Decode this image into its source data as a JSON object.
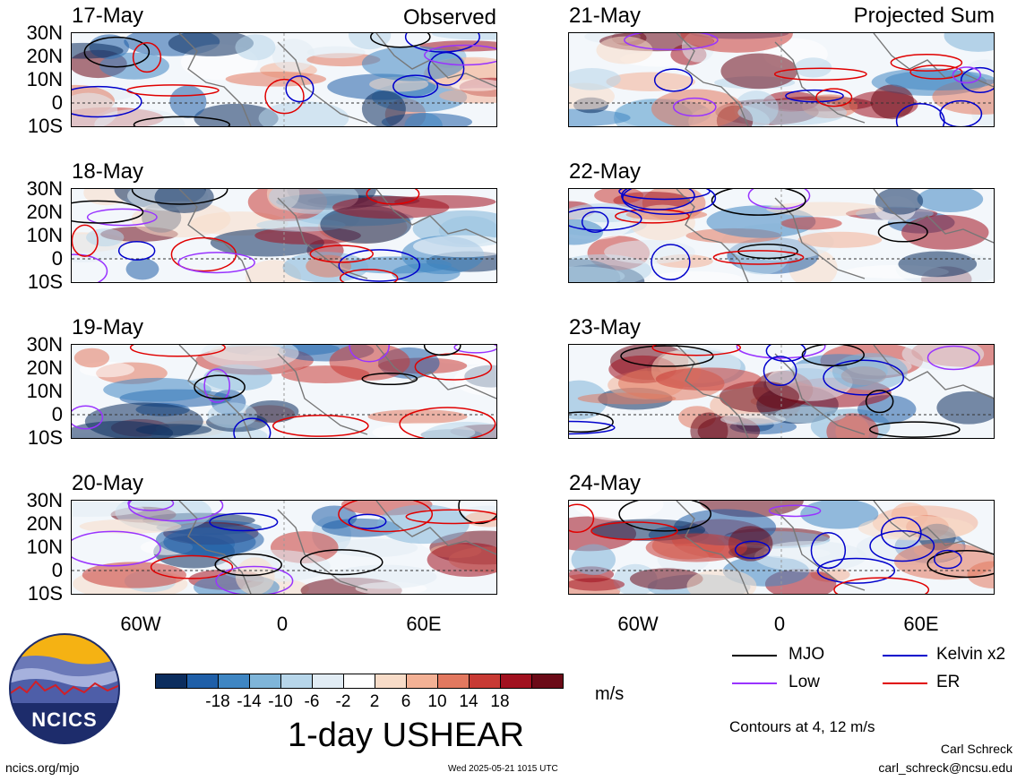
{
  "panels_left": [
    {
      "date": "17-May",
      "tag": "Observed"
    },
    {
      "date": "18-May",
      "tag": ""
    },
    {
      "date": "19-May",
      "tag": ""
    },
    {
      "date": "20-May",
      "tag": ""
    }
  ],
  "panels_right": [
    {
      "date": "21-May",
      "tag": "Projected Sum"
    },
    {
      "date": "22-May",
      "tag": ""
    },
    {
      "date": "23-May",
      "tag": ""
    },
    {
      "date": "24-May",
      "tag": ""
    }
  ],
  "lat_labels": [
    "30N",
    "20N",
    "10N",
    "0",
    "10S"
  ],
  "lon_labels": [
    "60W",
    "0",
    "60E"
  ],
  "legend": {
    "items": [
      {
        "label": "MJO",
        "color": "#000000"
      },
      {
        "label": "Kelvin x2",
        "color": "#0000cc"
      },
      {
        "label": "Low",
        "color": "#9933ff"
      },
      {
        "label": "ER",
        "color": "#e00000"
      }
    ],
    "contours_note": "Contours at 4, 12 m/s"
  },
  "colorbar": {
    "colors": [
      "#0b2d5e",
      "#1f5fa8",
      "#3f86c3",
      "#7fb5d9",
      "#b7d6ea",
      "#e1ecf4",
      "#ffffff",
      "#f8dcc8",
      "#f3b195",
      "#e2785f",
      "#c83a34",
      "#a1111f",
      "#6b0a17"
    ],
    "ticks": [
      "-18",
      "-14",
      "-10",
      "-6",
      "-2",
      "2",
      "6",
      "10",
      "14",
      "18"
    ],
    "unit": "m/s",
    "title": "1-day USHEAR"
  },
  "logo_text": "NCICS",
  "footer": {
    "left": "ncics.org/mjo",
    "center": "Wed 2025-05-21 1015 UTC",
    "author": "Carl Schreck",
    "email": "carl_schreck@ncsu.edu"
  }
}
